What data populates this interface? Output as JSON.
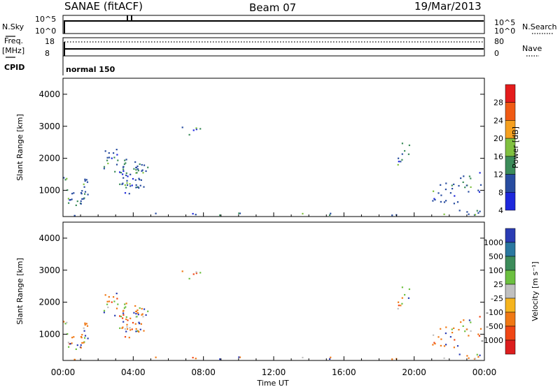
{
  "header": {
    "station": "SANAE (fitACF)",
    "beam": "Beam 07",
    "date": "19/Mar/2013"
  },
  "nsky_panel": {
    "left_label": "N.Sky",
    "right_label": "N.Search",
    "left_ticks": [
      "10^5",
      "10^0"
    ],
    "right_ticks": [
      "10^5",
      "10^0"
    ]
  },
  "freq_panel": {
    "left_label_1": "Freq.",
    "left_label_2": "[MHz]",
    "right_label": "Nave",
    "left_ticks": [
      "18",
      "8"
    ],
    "right_ticks": [
      "80",
      "0"
    ]
  },
  "cpid_panel": {
    "label": "CPID",
    "value": "normal 150"
  },
  "chart_data": [
    {
      "type": "heatmap",
      "name": "power",
      "ylabel": "Slant Range [km]",
      "ylim": [
        180,
        4500
      ],
      "yticks": [
        1000,
        2000,
        3000,
        4000
      ],
      "xlim": [
        0,
        24
      ],
      "colorbar_label": "Power [dB]",
      "colorbar_ticks": [
        "28",
        "24",
        "20",
        "16",
        "12",
        "8",
        "4"
      ],
      "colorbar_colors": [
        "#e41c1c",
        "#f05a14",
        "#f5a020",
        "#80c040",
        "#3c8c5a",
        "#284ca0",
        "#1e28dc"
      ]
    },
    {
      "type": "heatmap",
      "name": "velocity",
      "ylabel": "Slant Range [km]",
      "ylim": [
        180,
        4500
      ],
      "yticks": [
        1000,
        2000,
        3000,
        4000
      ],
      "xlim": [
        0,
        24
      ],
      "colorbar_label": "Velocity [m s⁻¹]",
      "colorbar_ticks": [
        "1000",
        "500",
        "100",
        "25",
        "-25",
        "-100",
        "-500",
        "-1000"
      ],
      "colorbar_colors": [
        "#2a3cb4",
        "#2a78a0",
        "#3c8c5a",
        "#6cc040",
        "#c0c0c0",
        "#f5b41e",
        "#f07814",
        "#f04614",
        "#dc1e1e"
      ]
    }
  ],
  "xaxis": {
    "ticks": [
      "00:00",
      "04:00",
      "08:00",
      "12:00",
      "16:00",
      "20:00",
      "00:00"
    ],
    "label": "Time UT"
  }
}
